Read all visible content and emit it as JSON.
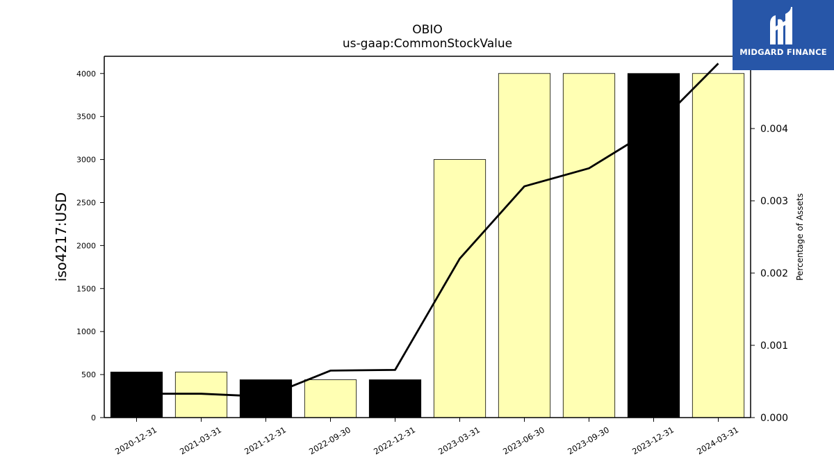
{
  "chart_data": {
    "type": "bar",
    "title": "OBIO",
    "subtitle": "us-gaap:CommonStockValue",
    "ylabel": "iso4217:USD",
    "y2label": "Percentage of Assets",
    "categories": [
      "2020-12-31",
      "2021-03-31",
      "2021-12-31",
      "2022-09-30",
      "2022-12-31",
      "2023-03-31",
      "2023-06-30",
      "2023-09-30",
      "2023-12-31",
      "2024-03-31"
    ],
    "series": [
      {
        "values": [
          530,
          530,
          440,
          440,
          440,
          3000,
          4000,
          4000,
          4000,
          4000
        ],
        "colors": [
          "#000000",
          "#ffffb3",
          "#000000",
          "#ffffb3",
          "#000000",
          "#ffffb3",
          "#ffffb3",
          "#ffffb3",
          "#000000",
          "#ffffb3"
        ]
      },
      {
        "type": "line",
        "axis": "right",
        "values": [
          0.00033,
          0.00033,
          0.00029,
          0.00065,
          0.00066,
          0.0022,
          0.0032,
          0.00345,
          0.004,
          0.0049
        ]
      }
    ],
    "ylim": [
      0,
      4200
    ],
    "y2lim": [
      0,
      0.005
    ],
    "yticks": [
      "0",
      "500",
      "1000",
      "1500",
      "2000",
      "2500",
      "3000",
      "3500",
      "4000"
    ],
    "y2ticks": [
      "0.000",
      "0.001",
      "0.002",
      "0.003",
      "0.004"
    ],
    "grid": false
  },
  "brand": {
    "name": "MIDGARD FINANCE",
    "color": "#2756a8"
  }
}
